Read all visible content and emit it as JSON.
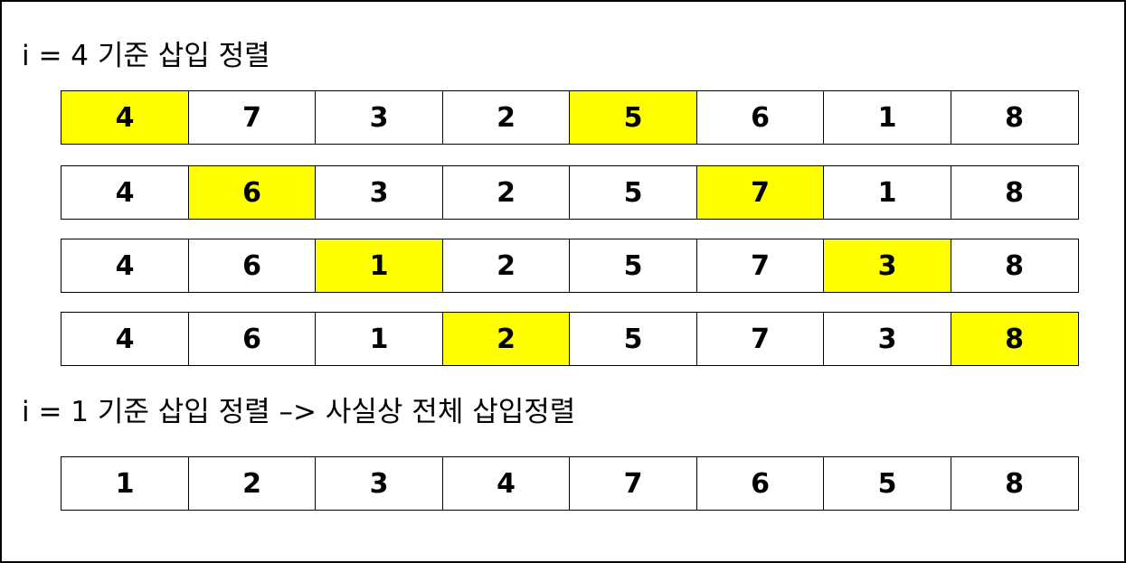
{
  "captions": [
    "i = 4 기준 삽입 정렬",
    "i = 1 기준 삽입 정렬 –> 사실상 전체 삽입정렬"
  ],
  "highlight_color": "#ffff00",
  "rows": [
    {
      "values": [
        "4",
        "7",
        "3",
        "2",
        "5",
        "6",
        "1",
        "8"
      ],
      "highlighted": [
        0,
        4
      ]
    },
    {
      "values": [
        "4",
        "6",
        "3",
        "2",
        "5",
        "7",
        "1",
        "8"
      ],
      "highlighted": [
        1,
        5
      ]
    },
    {
      "values": [
        "4",
        "6",
        "1",
        "2",
        "5",
        "7",
        "3",
        "8"
      ],
      "highlighted": [
        2,
        6
      ]
    },
    {
      "values": [
        "4",
        "6",
        "1",
        "2",
        "5",
        "7",
        "3",
        "8"
      ],
      "highlighted": [
        3,
        7
      ]
    },
    {
      "values": [
        "1",
        "2",
        "3",
        "4",
        "7",
        "6",
        "5",
        "8"
      ],
      "highlighted": []
    }
  ]
}
